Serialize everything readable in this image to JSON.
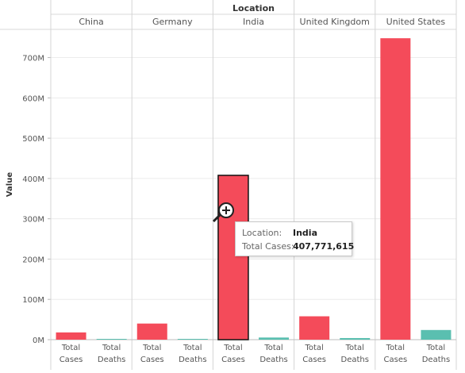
{
  "chart_data": {
    "type": "bar",
    "column_header_title": "Location",
    "locations": [
      "China",
      "Germany",
      "India",
      "United Kingdom",
      "United States"
    ],
    "measures": [
      "Total Cases",
      "Total Deaths"
    ],
    "measure_labels": [
      [
        "Total",
        "Cases"
      ],
      [
        "Total",
        "Deaths"
      ]
    ],
    "series": [
      {
        "name": "Total Cases",
        "values": [
          18000000,
          40000000,
          407771615,
          58000000,
          748000000
        ]
      },
      {
        "name": "Total Deaths",
        "values": [
          100000,
          200000,
          5300000,
          4000000,
          24000000
        ]
      }
    ],
    "ylabel": "Value",
    "ylim": [
      0,
      770000000
    ],
    "yticks": [
      0,
      100000000,
      200000000,
      300000000,
      400000000,
      500000000,
      600000000,
      700000000
    ],
    "ytick_labels": [
      "0M",
      "100M",
      "200M",
      "300M",
      "400M",
      "500M",
      "600M",
      "700M"
    ],
    "colors": {
      "Total Cases": "#f44b5a",
      "Total Deaths": "#5abfb0"
    },
    "highlight": {
      "location": "India",
      "measure": "Total Cases"
    }
  },
  "tooltip": {
    "location_label": "Location:",
    "location_value": "India",
    "measure_label": "Total Cases:",
    "measure_value": "407,771,615"
  }
}
